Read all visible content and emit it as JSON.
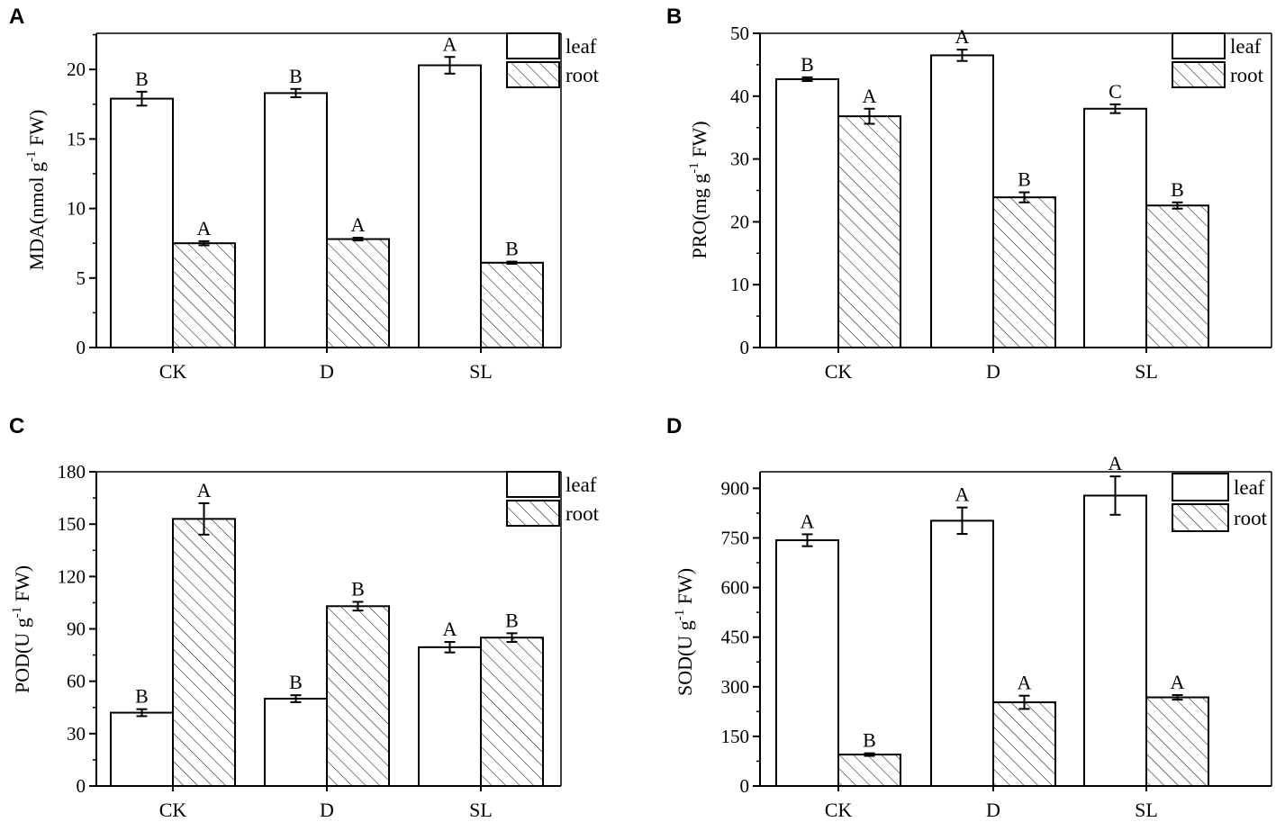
{
  "chart_data": [
    {
      "panel": "A",
      "type": "bar",
      "categories": [
        "CK",
        "D",
        "SL"
      ],
      "series": [
        {
          "name": "leaf",
          "values": [
            17.9,
            18.3,
            20.3
          ],
          "errors": [
            0.5,
            0.3,
            0.6
          ],
          "labels": [
            "B",
            "B",
            "A"
          ]
        },
        {
          "name": "root",
          "values": [
            7.5,
            7.8,
            6.1
          ],
          "errors": [
            0.15,
            0.1,
            0.08
          ],
          "labels": [
            "A",
            "A",
            "B"
          ]
        }
      ],
      "ylabel_main": "MDA(nmol g",
      "ylabel_sup": "-1",
      "ylabel_tail": " FW)",
      "ylim": [
        0,
        22.6
      ],
      "yticks": [
        "0",
        "5",
        "10",
        "15",
        "20"
      ],
      "ytick_values": [
        0,
        5,
        10,
        15,
        20
      ],
      "minor_step": 2.5
    },
    {
      "panel": "B",
      "type": "bar",
      "categories": [
        "CK",
        "D",
        "SL"
      ],
      "series": [
        {
          "name": "leaf",
          "values": [
            42.7,
            46.5,
            38.0
          ],
          "errors": [
            0.3,
            0.9,
            0.7
          ],
          "labels": [
            "B",
            "A",
            "C"
          ]
        },
        {
          "name": "root",
          "values": [
            36.8,
            23.9,
            22.6
          ],
          "errors": [
            1.2,
            0.8,
            0.5
          ],
          "labels": [
            "A",
            "B",
            "B"
          ]
        }
      ],
      "ylabel_main": "PRO(mg g",
      "ylabel_sup": "-1",
      "ylabel_tail": " FW)",
      "ylim": [
        0,
        50
      ],
      "yticks": [
        "0",
        "10",
        "20",
        "30",
        "40",
        "50"
      ],
      "ytick_values": [
        0,
        10,
        20,
        30,
        40,
        50
      ],
      "minor_step": 5
    },
    {
      "panel": "C",
      "type": "bar",
      "categories": [
        "CK",
        "D",
        "SL"
      ],
      "series": [
        {
          "name": "leaf",
          "values": [
            42,
            50,
            79.5
          ],
          "errors": [
            2,
            2,
            3
          ],
          "labels": [
            "B",
            "B",
            "A"
          ]
        },
        {
          "name": "root",
          "values": [
            153,
            103,
            85
          ],
          "errors": [
            9,
            2.5,
            2.5
          ],
          "labels": [
            "A",
            "B",
            "B"
          ]
        }
      ],
      "ylabel_main": "POD(U g",
      "ylabel_sup": "-1",
      "ylabel_tail": " FW)",
      "ylim": [
        0,
        180
      ],
      "yticks": [
        "0",
        "30",
        "60",
        "90",
        "120",
        "150",
        "180"
      ],
      "ytick_values": [
        0,
        30,
        60,
        90,
        120,
        150,
        180
      ],
      "minor_step": 15
    },
    {
      "panel": "D",
      "type": "bar",
      "categories": [
        "CK",
        "D",
        "SL"
      ],
      "series": [
        {
          "name": "leaf",
          "values": [
            743,
            802,
            878
          ],
          "errors": [
            18,
            40,
            58
          ],
          "labels": [
            "A",
            "A",
            "A"
          ]
        },
        {
          "name": "root",
          "values": [
            95,
            253,
            268
          ],
          "errors": [
            4,
            20,
            7
          ],
          "labels": [
            "B",
            "A",
            "A"
          ]
        }
      ],
      "ylabel_main": "SOD(U g",
      "ylabel_sup": "-1",
      "ylabel_tail": " FW)",
      "ylim": [
        0,
        950
      ],
      "yticks": [
        "0",
        "150",
        "300",
        "450",
        "600",
        "750",
        "900"
      ],
      "ytick_values": [
        0,
        150,
        300,
        450,
        600,
        750,
        900
      ],
      "minor_step": 75
    }
  ],
  "legend": {
    "leaf": "leaf",
    "root": "root"
  },
  "colors": {
    "leaf_fill": "#ffffff",
    "root_fill": "#ffffff",
    "hatch": "#000000",
    "stroke": "#000000"
  }
}
